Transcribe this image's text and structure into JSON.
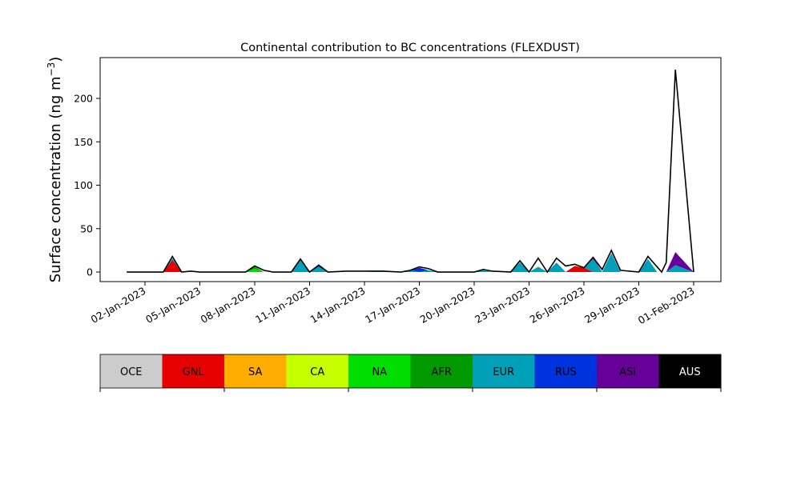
{
  "chart_data": {
    "type": "area",
    "stacked": true,
    "title": "Continental contribution to BC concentrations (FLEXDUST)",
    "ylabel": "Surface concentration (ng m",
    "ylabel_sup": "−3",
    "ylabel_close": ")",
    "xlabel": "",
    "ylim": [
      -11,
      247
    ],
    "yticks": [
      0,
      50,
      100,
      150,
      200
    ],
    "xlim": [
      "2023-01-01",
      "2023-02-01"
    ],
    "xticks": [
      "02-Jan-2023",
      "05-Jan-2023",
      "08-Jan-2023",
      "11-Jan-2023",
      "14-Jan-2023",
      "17-Jan-2023",
      "20-Jan-2023",
      "23-Jan-2023",
      "26-Jan-2023",
      "29-Jan-2023",
      "01-Feb-2023"
    ],
    "x": [
      "2023-01-01",
      "2023-01-02",
      "2023-01-03",
      "2023-01-03 12:00",
      "2023-01-04",
      "2023-01-04 12:00",
      "2023-01-05",
      "2023-01-06",
      "2023-01-07",
      "2023-01-07 12:00",
      "2023-01-08",
      "2023-01-08 12:00",
      "2023-01-09",
      "2023-01-10",
      "2023-01-10 12:00",
      "2023-01-11",
      "2023-01-11 12:00",
      "2023-01-12",
      "2023-01-13",
      "2023-01-14",
      "2023-01-15",
      "2023-01-16",
      "2023-01-16 12:00",
      "2023-01-17",
      "2023-01-17 12:00",
      "2023-01-18",
      "2023-01-19",
      "2023-01-20",
      "2023-01-20 12:00",
      "2023-01-21",
      "2023-01-22",
      "2023-01-22 12:00",
      "2023-01-23",
      "2023-01-23 12:00",
      "2023-01-24",
      "2023-01-24 12:00",
      "2023-01-25",
      "2023-01-25 12:00",
      "2023-01-26",
      "2023-01-26 12:00",
      "2023-01-27",
      "2023-01-27 12:00",
      "2023-01-28",
      "2023-01-29",
      "2023-01-29 12:00",
      "2023-01-30",
      "2023-01-30 06:00",
      "2023-01-30 12:00",
      "2023-01-31",
      "2023-02-01"
    ],
    "series": [
      {
        "name": "OCE",
        "color": "#cccccc",
        "values": [
          0,
          0,
          0,
          0,
          0,
          0,
          0,
          0,
          0,
          0,
          0,
          0,
          0,
          0,
          0,
          0,
          0,
          0,
          0,
          0,
          0,
          0,
          0,
          0,
          0,
          0,
          0,
          0,
          0,
          0,
          0,
          0,
          0,
          0,
          0,
          0,
          0,
          0,
          0,
          0,
          0,
          0,
          0,
          0,
          0,
          0,
          0,
          0,
          0,
          0
        ]
      },
      {
        "name": "GNL",
        "color": "#e60000",
        "values": [
          0,
          0,
          0,
          14,
          0,
          0,
          0,
          0,
          0,
          0,
          0,
          0,
          0,
          0,
          0,
          0,
          0,
          0,
          0,
          0,
          0,
          0,
          0,
          0,
          0,
          0,
          0,
          0,
          0,
          0,
          0,
          0,
          0,
          0,
          0,
          0,
          0,
          7,
          5,
          0,
          0,
          0,
          0,
          0,
          0,
          0,
          0,
          0,
          0,
          0
        ]
      },
      {
        "name": "SA",
        "color": "#ffad00",
        "values": [
          0,
          0,
          0,
          0,
          0,
          0,
          0,
          0,
          0,
          0,
          0,
          0,
          0,
          0,
          0,
          0,
          0,
          0,
          0,
          0,
          0,
          0,
          0,
          0,
          0,
          0,
          0,
          0,
          0,
          0,
          0,
          0,
          0,
          0,
          0,
          0,
          0,
          0,
          0,
          0,
          0,
          0,
          0,
          0,
          0,
          0,
          0,
          0,
          0,
          0
        ]
      },
      {
        "name": "CA",
        "color": "#c6ff00",
        "values": [
          0,
          0,
          0,
          0,
          0,
          0,
          0,
          0,
          0,
          0,
          0,
          0,
          0,
          0,
          0,
          0,
          0,
          0,
          0,
          0,
          0,
          0,
          0,
          0,
          0,
          0,
          0,
          0,
          0,
          0,
          0,
          0,
          0,
          0,
          0,
          0,
          0,
          0,
          0,
          0,
          0,
          0,
          0,
          0,
          0,
          0,
          0,
          0,
          0,
          0
        ]
      },
      {
        "name": "NA",
        "color": "#00dd00",
        "values": [
          0,
          0,
          0,
          0,
          0,
          0,
          0,
          0,
          0,
          0,
          4,
          0,
          0,
          0,
          0,
          0,
          0,
          0,
          0,
          0,
          0,
          0,
          0,
          0,
          0,
          0,
          0,
          0,
          0,
          0,
          0,
          0,
          0,
          0,
          0,
          0,
          0,
          0,
          0,
          0,
          0,
          0,
          0,
          0,
          0,
          0,
          0,
          0,
          0,
          0
        ]
      },
      {
        "name": "AFR",
        "color": "#009900",
        "values": [
          0,
          0,
          0,
          0,
          0,
          0,
          0,
          0,
          0,
          0,
          2,
          0,
          0,
          0,
          0,
          0,
          0,
          0,
          0,
          0,
          0,
          0,
          0,
          0,
          0,
          0,
          0,
          0,
          0,
          0,
          0,
          0,
          0,
          0,
          0,
          0,
          0,
          0,
          0,
          0,
          0,
          0,
          0,
          0,
          0,
          0,
          0,
          0,
          0,
          0
        ]
      },
      {
        "name": "EUR",
        "color": "#00a0b8",
        "values": [
          0,
          0,
          0,
          2,
          0,
          0,
          0,
          0,
          0,
          0,
          0,
          0,
          0,
          0,
          14,
          0,
          6,
          0,
          0,
          0,
          1,
          0,
          2,
          0,
          2,
          0,
          0,
          0,
          2,
          0,
          0,
          11,
          0,
          6,
          0,
          11,
          0,
          0,
          0,
          15,
          0,
          22,
          0,
          0,
          15,
          0,
          0,
          0,
          8,
          0
        ]
      },
      {
        "name": "RUS",
        "color": "#0033dd",
        "values": [
          0,
          0,
          0,
          0,
          0,
          0,
          0,
          0,
          0,
          0,
          0,
          0,
          0,
          0,
          0,
          0,
          2,
          0,
          0,
          0,
          0,
          0,
          0,
          5,
          0,
          0,
          0,
          0,
          0,
          0,
          0,
          0,
          0,
          0,
          0,
          0,
          0,
          0,
          0,
          2,
          0,
          0,
          0,
          0,
          0,
          0,
          0,
          0,
          0,
          0
        ]
      },
      {
        "name": "ASI",
        "color": "#660099",
        "values": [
          0,
          0,
          0,
          0,
          0,
          0,
          0,
          0,
          0,
          0,
          0,
          0,
          0,
          0,
          0,
          0,
          0,
          0,
          0,
          0,
          0,
          0,
          0,
          0,
          0,
          0,
          0,
          0,
          0,
          0,
          0,
          0,
          0,
          0,
          0,
          0,
          0,
          0,
          0,
          0,
          0,
          0,
          0,
          0,
          0,
          0,
          0,
          0,
          15,
          0
        ]
      },
      {
        "name": "AUS",
        "color": "#000000",
        "values": [
          0,
          0,
          0,
          0,
          0,
          0,
          0,
          0,
          0,
          0,
          0,
          0,
          0,
          0,
          0,
          0,
          0,
          0,
          0,
          0,
          0,
          0,
          0,
          0,
          0,
          0,
          0,
          0,
          0,
          0,
          0,
          0,
          0,
          0,
          0,
          0,
          0,
          0,
          0,
          0,
          0,
          0,
          0,
          0,
          0,
          0,
          0,
          0,
          0,
          0
        ]
      }
    ],
    "total": [
      0,
      0,
      0,
      18,
      0,
      1,
      0,
      0,
      0,
      0,
      7,
      2,
      0,
      0,
      15,
      0,
      8,
      0,
      1,
      1,
      1,
      0,
      2,
      6,
      4,
      0,
      0,
      0,
      3,
      1,
      0,
      13,
      0,
      16,
      0,
      16,
      7,
      9,
      5,
      17,
      3,
      25,
      2,
      0,
      18,
      6,
      0,
      11,
      233,
      0
    ],
    "legend": {
      "placement": "bottom",
      "labels": [
        "OCE",
        "GNL",
        "SA",
        "CA",
        "NA",
        "AFR",
        "EUR",
        "RUS",
        "ASI",
        "AUS"
      ],
      "colors": [
        "#cccccc",
        "#e60000",
        "#ffad00",
        "#c6ff00",
        "#00dd00",
        "#009900",
        "#00a0b8",
        "#0033dd",
        "#660099",
        "#000000"
      ],
      "text_colors": [
        "#000000",
        "#000000",
        "#000000",
        "#000000",
        "#000000",
        "#000000",
        "#000000",
        "#000000",
        "#000000",
        "#ffffff"
      ]
    },
    "grid": false
  }
}
